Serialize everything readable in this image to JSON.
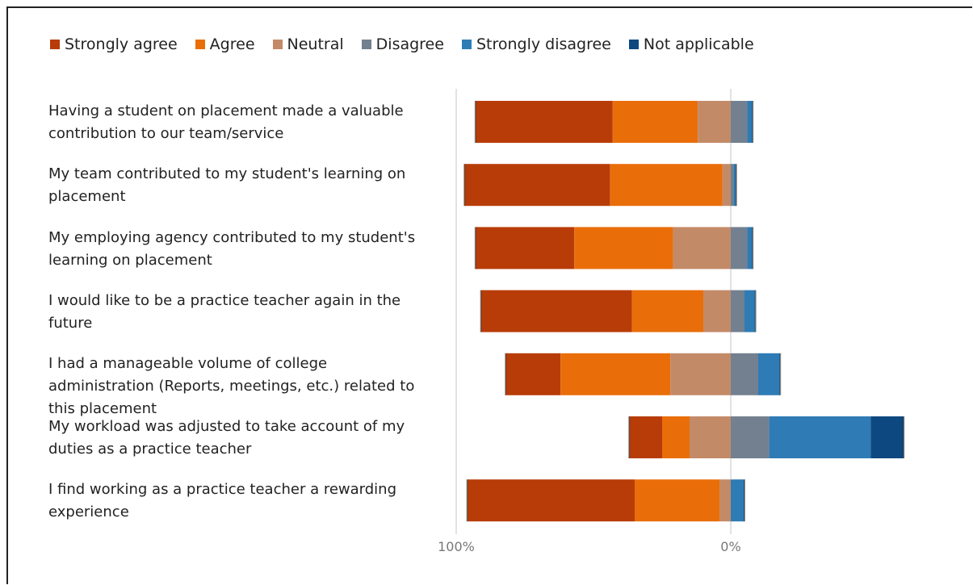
{
  "chart_data": {
    "type": "bar",
    "orientation": "horizontal",
    "stacked": "diverging",
    "legend": [
      {
        "name": "Strongly agree",
        "color": "#b83c08"
      },
      {
        "name": "Agree",
        "color": "#e96e0a"
      },
      {
        "name": "Neutral",
        "color": "#c38a68"
      },
      {
        "name": "Disagree",
        "color": "#73808f"
      },
      {
        "name": "Strongly disagree",
        "color": "#2e7bb5"
      },
      {
        "name": "Not applicable",
        "color": "#0d4880"
      }
    ],
    "categories": [
      "Having a student on placement made a valuable contribution to our team/service",
      "My team contributed to my student's learning on placement",
      "My employing agency contributed to my student's learning on placement",
      "I would like to be a practice teacher again in the future",
      "I had a manageable volume of college administration (Reports, meetings, etc.) related to this placement",
      "My workload was adjusted to take account of my duties as a practice teacher",
      "I find working as a practice teacher a rewarding experience"
    ],
    "series": [
      {
        "name": "Strongly agree",
        "values": [
          50,
          53,
          36,
          55,
          20,
          12,
          61
        ]
      },
      {
        "name": "Agree",
        "values": [
          31,
          41,
          36,
          26,
          40,
          10,
          31
        ]
      },
      {
        "name": "Neutral",
        "values": [
          12,
          3,
          21,
          10,
          22,
          15,
          4
        ]
      },
      {
        "name": "Disagree",
        "values": [
          6,
          1,
          6,
          5,
          10,
          14,
          0
        ]
      },
      {
        "name": "Strongly disagree",
        "values": [
          2,
          1,
          2,
          4,
          8,
          37,
          5
        ]
      },
      {
        "name": "Not applicable",
        "values": [
          0,
          0,
          0,
          0,
          0,
          12,
          0
        ]
      }
    ],
    "xaxis": {
      "ticks": [
        "100%",
        "0%"
      ]
    },
    "xlim": [
      -100,
      100
    ]
  }
}
